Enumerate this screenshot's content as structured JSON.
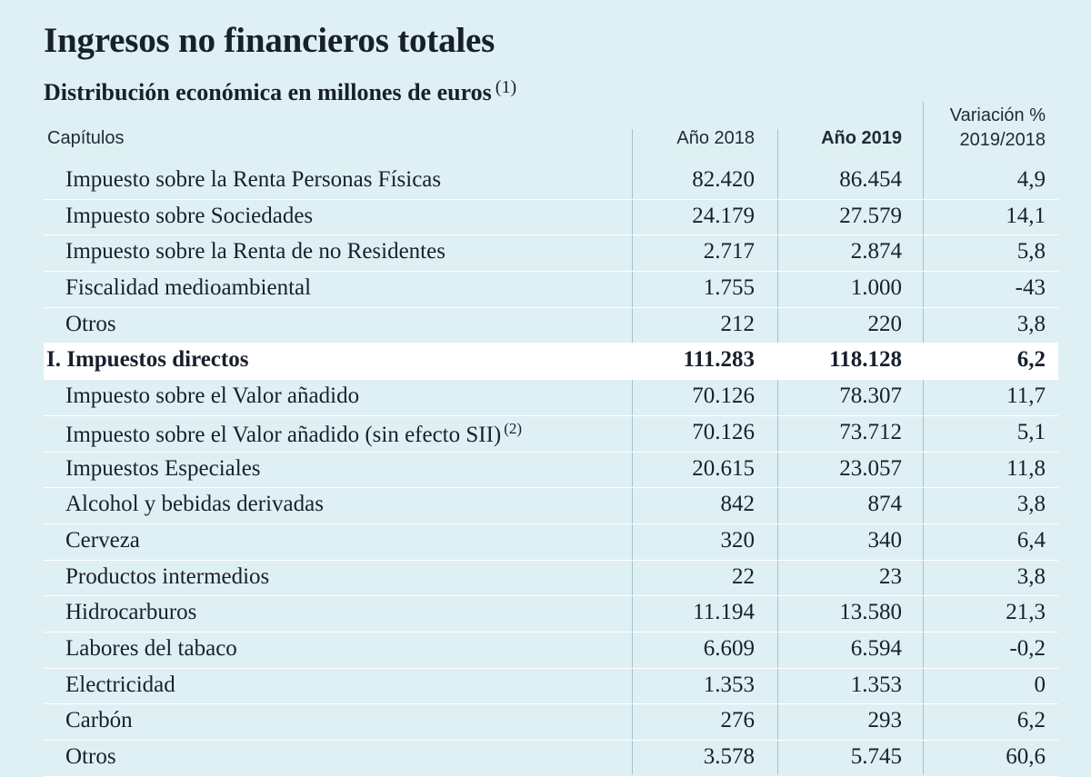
{
  "title": "Ingresos no financieros totales",
  "subtitle": "Distribución económica en millones de euros",
  "subtitle_note": "(1)",
  "header": {
    "capitulos": "Capítulos",
    "year_2018": "Año 2018",
    "year_2019": "Año 2019",
    "variation_line1": "Variación %",
    "variation_line2": "2019/2018"
  },
  "rows": [
    {
      "label": "Impuesto sobre la Renta Personas Físicas",
      "note": "",
      "y2018": "82.420",
      "y2019": "86.454",
      "var": "4,9",
      "total": false
    },
    {
      "label": "Impuesto sobre Sociedades",
      "note": "",
      "y2018": "24.179",
      "y2019": "27.579",
      "var": "14,1",
      "total": false
    },
    {
      "label": "Impuesto sobre la Renta de no Residentes",
      "note": "",
      "y2018": "2.717",
      "y2019": "2.874",
      "var": "5,8",
      "total": false
    },
    {
      "label": "Fiscalidad medioambiental",
      "note": "",
      "y2018": "1.755",
      "y2019": "1.000",
      "var": "-43",
      "total": false
    },
    {
      "label": "Otros",
      "note": "",
      "y2018": "212",
      "y2019": "220",
      "var": "3,8",
      "total": false
    },
    {
      "label": "I. Impuestos directos",
      "note": "",
      "y2018": "111.283",
      "y2019": "118.128",
      "var": "6,2",
      "total": true
    },
    {
      "label": "Impuesto sobre el Valor añadido",
      "note": "",
      "y2018": "70.126",
      "y2019": "78.307",
      "var": "11,7",
      "total": false
    },
    {
      "label": "Impuesto sobre el Valor añadido (sin efecto SII)",
      "note": "(2)",
      "y2018": "70.126",
      "y2019": "73.712",
      "var": "5,1",
      "total": false
    },
    {
      "label": "Impuestos Especiales",
      "note": "",
      "y2018": "20.615",
      "y2019": "23.057",
      "var": "11,8",
      "total": false
    },
    {
      "label": "Alcohol y bebidas derivadas",
      "note": "",
      "y2018": "842",
      "y2019": "874",
      "var": "3,8",
      "total": false
    },
    {
      "label": "Cerveza",
      "note": "",
      "y2018": "320",
      "y2019": "340",
      "var": "6,4",
      "total": false
    },
    {
      "label": "Productos intermedios",
      "note": "",
      "y2018": "22",
      "y2019": "23",
      "var": "3,8",
      "total": false
    },
    {
      "label": "Hidrocarburos",
      "note": "",
      "y2018": "11.194",
      "y2019": "13.580",
      "var": "21,3",
      "total": false
    },
    {
      "label": "Labores del tabaco",
      "note": "",
      "y2018": "6.609",
      "y2019": "6.594",
      "var": "-0,2",
      "total": false
    },
    {
      "label": "Electricidad",
      "note": "",
      "y2018": "1.353",
      "y2019": "1.353",
      "var": "0",
      "total": false
    },
    {
      "label": "Carbón",
      "note": "",
      "y2018": "276",
      "y2019": "293",
      "var": "6,2",
      "total": false
    },
    {
      "label": "Otros",
      "note": "",
      "y2018": "3.578",
      "y2019": "5.745",
      "var": "60,6",
      "total": false
    }
  ],
  "colors": {
    "background": "#dff0f4",
    "highlight_row": "#ffffff",
    "text": "#17202c",
    "divider": "#9fc2cd"
  }
}
